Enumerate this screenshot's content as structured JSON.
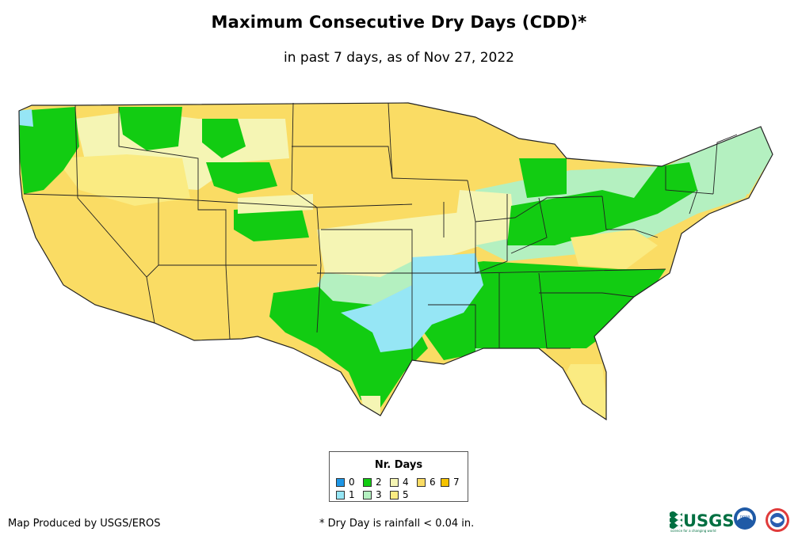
{
  "title": "Maximum Consecutive Dry Days (CDD)*",
  "subtitle": "in past 7 days, as of Nov 27, 2022",
  "legend": {
    "title": "Nr. Days",
    "items": [
      {
        "label": "0",
        "color": "#1e96e6"
      },
      {
        "label": "1",
        "color": "#96e6f5"
      },
      {
        "label": "2",
        "color": "#12cc12"
      },
      {
        "label": "3",
        "color": "#b4f0c0"
      },
      {
        "label": "4",
        "color": "#f5f5b4"
      },
      {
        "label": "5",
        "color": "#faeb82"
      },
      {
        "label": "6",
        "color": "#fadc64"
      },
      {
        "label": "7",
        "color": "#f5c300"
      }
    ]
  },
  "footer": {
    "credit": "Map Produced by USGS/EROS",
    "footnote": "* Dry Day is rainfall < 0.04 in."
  },
  "logos": {
    "usgs": "USGS",
    "usgs_tagline": "science for a changing world",
    "noaa": "noaa",
    "nws": "national-weather-service-logo"
  }
}
